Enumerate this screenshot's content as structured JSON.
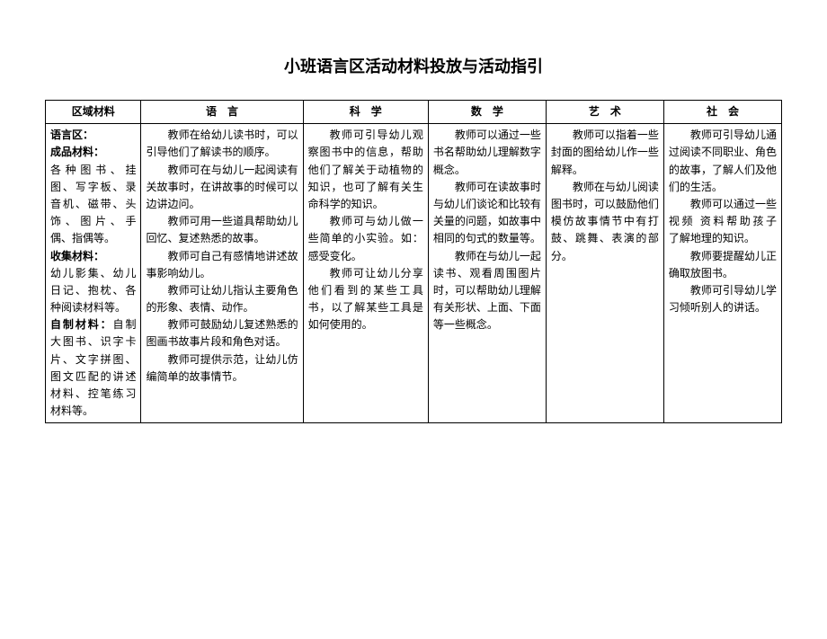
{
  "title": "小班语言区活动材料投放与活动指引",
  "headers": {
    "col1": "区域材料",
    "col2": "语　言",
    "col3": "科　学",
    "col4": "数　学",
    "col5": "艺　术",
    "col6": "社　会"
  },
  "content": {
    "materials": {
      "section1_title": "语言区：",
      "section2_title": "成品材料：",
      "section2_text": "各种图书、挂图、写字板、录音机、磁带、头饰、图片、手偶、指偶等。",
      "section3_title": "收集材料：",
      "section3_text": "幼儿影集、幼儿日记、抱枕、各种阅读材料等。",
      "section4_title": "自制材料：",
      "section4_text": "自制大图书、识字卡片、文字拼图、图文匹配的讲述材料、控笔练习材料等。"
    },
    "language": {
      "p1": "教师在给幼儿读书时，可以引导他们了解读书的顺序。",
      "p2": "教师可在与幼儿一起阅读有关故事时，在讲故事的时候可以边讲边问。",
      "p3": "教师可用一些道具帮助幼儿回忆、复述熟悉的故事。",
      "p4": "教师可自己有感情地讲述故事影响幼儿。",
      "p5": "教师可让幼儿指认主要角色的形象、表情、动作。",
      "p6": "教师可鼓励幼儿复述熟悉的图画书故事片段和角色对话。",
      "p7": "教师可提供示范，让幼儿仿编简单的故事情节。"
    },
    "science": {
      "p1": "教师可引导幼儿观察图书中的信息，帮助他们了解关于动植物的知识，也可了解有关生命科学的知识。",
      "p2": "教师可与幼儿做一些简单的小实验。如：感受变化。",
      "p3": "教师可让幼儿分享他们看到的某些工具书，以了解某些工具是如何使用的。"
    },
    "math": {
      "p1": "教师可以通过一些书名帮助幼儿理解数字概念。",
      "p2": "教师可在读故事时与幼儿们谈论和比较有关量的问题，如故事中相同的句式的数量等。",
      "p3": "教师在与幼儿一起读书、观看周围图片时，可以帮助幼儿理解有关形状、上面、下面等一些概念。"
    },
    "art": {
      "p1": "教师可以指着一些封面的图给幼儿作一些解释。",
      "p2": "教师在与幼儿阅读图书时，可以鼓励他们模仿故事情节中有打鼓、跳舞、表演的部分。"
    },
    "social": {
      "p1": "教师可引导幼儿通过阅读不同职业、角色的故事，了解人们及他们的生活。",
      "p2": "教师可以通过一些视频 资料帮助孩子　了解地理的知识。",
      "p3": "教师要提醒幼儿正确取放图书。",
      "p4": "教师可引导幼儿学习倾听别人的讲话。"
    }
  },
  "style": {
    "background": "#ffffff",
    "text_color": "#000000",
    "border_color": "#000000",
    "title_fontsize": 18,
    "body_fontsize": 12,
    "line_height": 1.6
  }
}
